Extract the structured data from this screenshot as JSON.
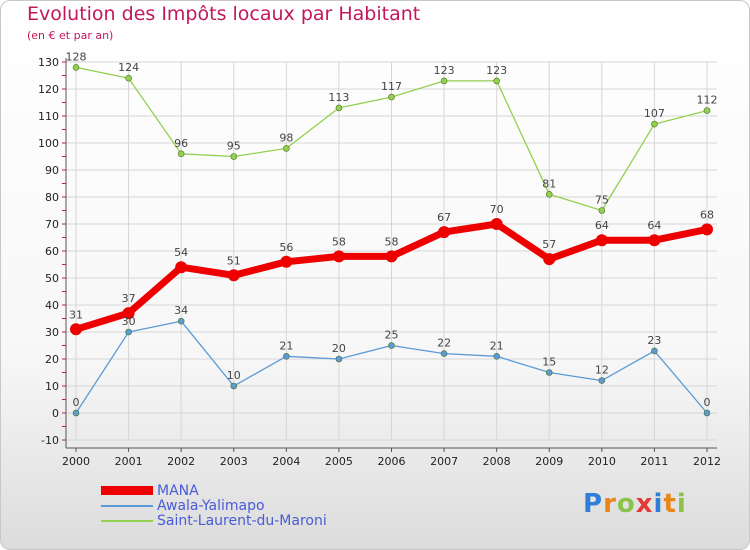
{
  "header": {
    "title": "Evolution des Impôts locaux par Habitant",
    "subtitle": "(en € et par an)"
  },
  "logo": {
    "text": "Proxiti"
  },
  "chart_data": {
    "type": "line",
    "title": "Evolution des Impôts locaux par Habitant",
    "subtitle": "(en € et par an)",
    "xlabel": "",
    "ylabel": "",
    "x": [
      "2000",
      "2001",
      "2002",
      "2003",
      "2004",
      "2005",
      "2006",
      "2007",
      "2008",
      "2009",
      "2010",
      "2011",
      "2012"
    ],
    "ylim": [
      -10,
      130
    ],
    "yticks": [
      -10,
      0,
      10,
      20,
      30,
      40,
      50,
      60,
      70,
      80,
      90,
      100,
      110,
      120,
      130
    ],
    "grid": true,
    "legend_position": "bottom-left",
    "series": [
      {
        "name": "MANA",
        "color": "#ee0000",
        "values": [
          31,
          37,
          54,
          51,
          56,
          58,
          58,
          67,
          70,
          57,
          64,
          64,
          68
        ]
      },
      {
        "name": "Awala-Yalimapo",
        "color": "#5b9bd5",
        "values": [
          0,
          30,
          34,
          10,
          21,
          20,
          25,
          22,
          21,
          15,
          12,
          23,
          0
        ]
      },
      {
        "name": "Saint-Laurent-du-Maroni",
        "color": "#92d050",
        "values": [
          128,
          124,
          96,
          95,
          98,
          113,
          117,
          123,
          123,
          81,
          75,
          107,
          112
        ]
      }
    ]
  }
}
